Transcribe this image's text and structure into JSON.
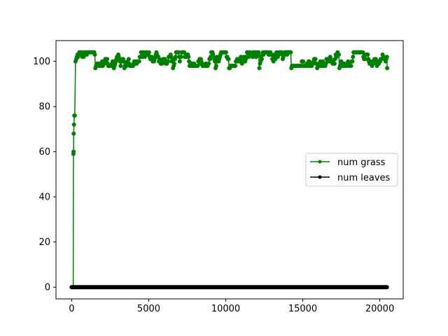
{
  "chart_data": {
    "type": "line",
    "title": "",
    "xlabel": "",
    "ylabel": "",
    "xlim": [
      -1020,
      21520
    ],
    "ylim": [
      -5.2,
      109.2
    ],
    "x_ticks": [
      0,
      5000,
      10000,
      15000,
      20000
    ],
    "y_ticks": [
      0,
      20,
      40,
      60,
      80,
      100
    ],
    "x_tick_labels": [
      "0",
      "5000",
      "10000",
      "15000",
      "20000"
    ],
    "y_tick_labels": [
      "0",
      "20",
      "40",
      "60",
      "80",
      "100"
    ],
    "legend": {
      "position": "center-right"
    },
    "grid": false,
    "series": [
      {
        "name": "num grass",
        "color": "#008000",
        "style": "line-with-dot-markers",
        "x_start": 0,
        "x_end": 20480,
        "ramp_points": [
          [
            0,
            0
          ],
          [
            100,
            0
          ],
          [
            110,
            59
          ],
          [
            120,
            60
          ],
          [
            130,
            68
          ],
          [
            150,
            72
          ],
          [
            170,
            76
          ],
          [
            200,
            76
          ],
          [
            250,
            100
          ]
        ],
        "steady_range": [
          97,
          104
        ],
        "note_values": "noisy, mostly between 98 and 103 after x≈250"
      },
      {
        "name": "num leaves",
        "color": "#000000",
        "style": "line-with-dot-markers",
        "x_start": 0,
        "x_end": 20480,
        "constant_value": 0
      }
    ]
  }
}
